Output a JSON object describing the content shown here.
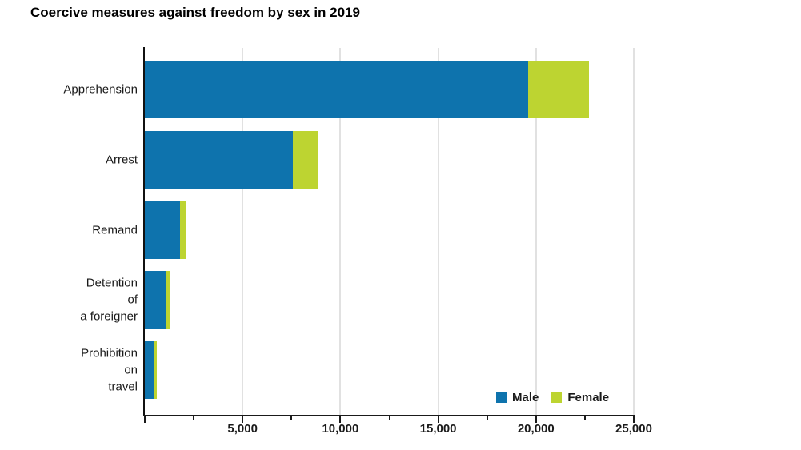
{
  "title": "Coercive measures against freedom by sex in 2019",
  "legend": {
    "items": [
      {
        "label": "Male",
        "color": "#0e73ad"
      },
      {
        "label": "Female",
        "color": "#bdd431"
      }
    ]
  },
  "colors": {
    "male": "#0e73ad",
    "female": "#bdd431",
    "axis": "#1a1a1a",
    "gridline": "#e1e1e1",
    "text": "#1a1a1a"
  },
  "chart_data": {
    "type": "bar",
    "orientation": "horizontal",
    "stacked": true,
    "title": "Coercive measures against freedom by sex in 2019",
    "categories": [
      "Apprehension",
      "Arrest",
      "Remand",
      "Detention of a foreigner",
      "Prohibition on travel"
    ],
    "category_label_lines": [
      [
        "Apprehension"
      ],
      [
        "Arrest"
      ],
      [
        "Remand"
      ],
      [
        "Detention",
        "of",
        "a foreigner"
      ],
      [
        "Prohibition",
        "on",
        "travel"
      ]
    ],
    "series": [
      {
        "name": "Male",
        "color": "#0e73ad",
        "values": [
          19600,
          7550,
          1780,
          1070,
          430
        ]
      },
      {
        "name": "Female",
        "color": "#bdd431",
        "values": [
          3100,
          1300,
          350,
          260,
          200
        ]
      }
    ],
    "totals": [
      22700,
      8850,
      2130,
      1330,
      630
    ],
    "xlabel": "",
    "ylabel": "",
    "xlim": [
      0,
      25000
    ],
    "x_major_tick": 5000,
    "x_minor_tick": 2500,
    "x_tick_labels": [
      "5,000",
      "10,000",
      "15,000",
      "20,000",
      "25,000"
    ],
    "grid": "vertical-major-only",
    "legend_position": "inside-bottom-right"
  }
}
